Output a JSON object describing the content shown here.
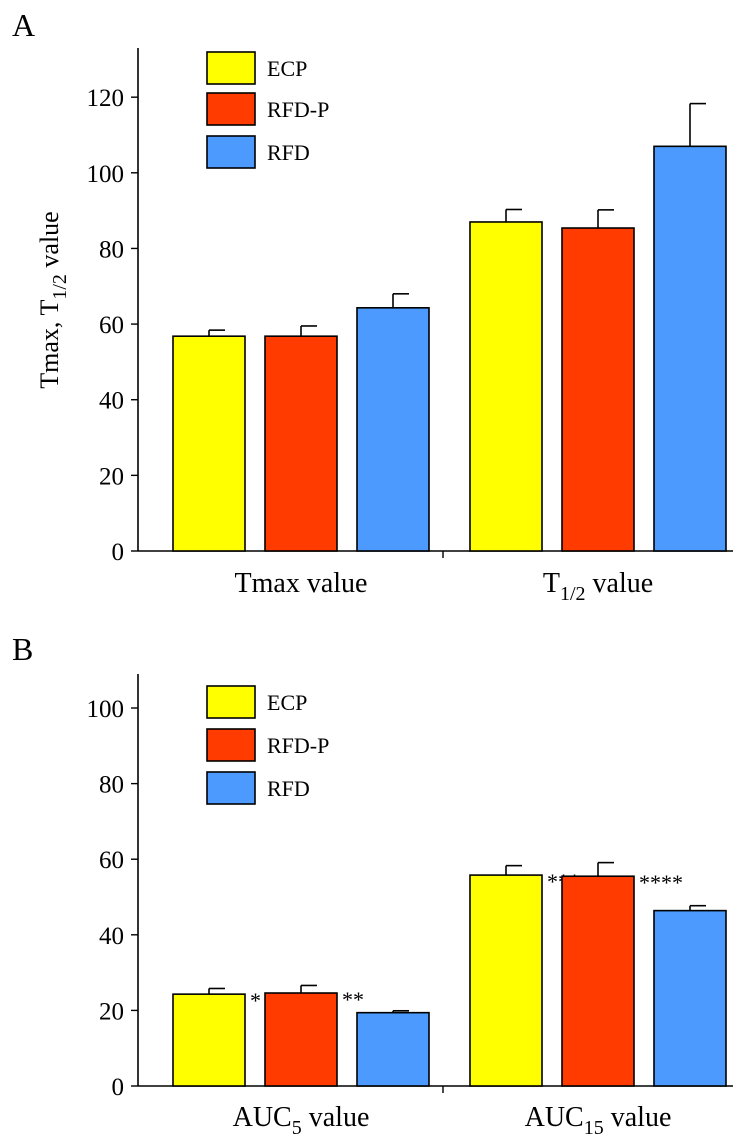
{
  "colors": {
    "ECP": "#ffff00",
    "RFD-P": "#ff3b00",
    "RFD": "#4d9aff"
  },
  "chart_data": [
    {
      "panel": "A",
      "type": "bar",
      "ylabel": {
        "main": "Tmax, T",
        "sub": "1/2",
        "suffix": " value"
      },
      "ylim": [
        0,
        133
      ],
      "yticks": [
        0,
        20,
        40,
        60,
        80,
        100,
        120
      ],
      "legend_position": "top-left",
      "categories": [
        {
          "main": "Tmax value",
          "sub": "",
          "suffix": ""
        },
        {
          "main": "T",
          "sub": "1/2",
          "suffix": " value"
        }
      ],
      "series": [
        {
          "name": "ECP",
          "values": [
            56.8,
            87.0
          ],
          "errors": [
            1.6,
            3.3
          ],
          "annotations": [
            "",
            ""
          ]
        },
        {
          "name": "RFD-P",
          "values": [
            56.8,
            85.4
          ],
          "errors": [
            2.7,
            4.8
          ],
          "annotations": [
            "",
            ""
          ]
        },
        {
          "name": "RFD",
          "values": [
            64.3,
            107.0
          ],
          "errors": [
            3.7,
            11.3
          ],
          "annotations": [
            "",
            ""
          ]
        }
      ]
    },
    {
      "panel": "B",
      "type": "bar",
      "ylabel": {
        "main": "",
        "sub": "",
        "suffix": ""
      },
      "ylim": [
        0,
        109
      ],
      "yticks": [
        0,
        20,
        40,
        60,
        80,
        100
      ],
      "legend_position": "top-left",
      "categories": [
        {
          "main": "AUC",
          "sub": "5",
          "suffix": " value"
        },
        {
          "main": "AUC",
          "sub": "15",
          "suffix": " value"
        }
      ],
      "series": [
        {
          "name": "ECP",
          "values": [
            24.3,
            55.8
          ],
          "errors": [
            1.5,
            2.5
          ],
          "annotations": [
            "*",
            "***"
          ]
        },
        {
          "name": "RFD-P",
          "values": [
            24.6,
            55.5
          ],
          "errors": [
            2.0,
            3.6
          ],
          "annotations": [
            "**",
            "****"
          ]
        },
        {
          "name": "RFD",
          "values": [
            19.4,
            46.4
          ],
          "errors": [
            0.5,
            1.3
          ],
          "annotations": [
            "",
            ""
          ]
        }
      ]
    }
  ]
}
